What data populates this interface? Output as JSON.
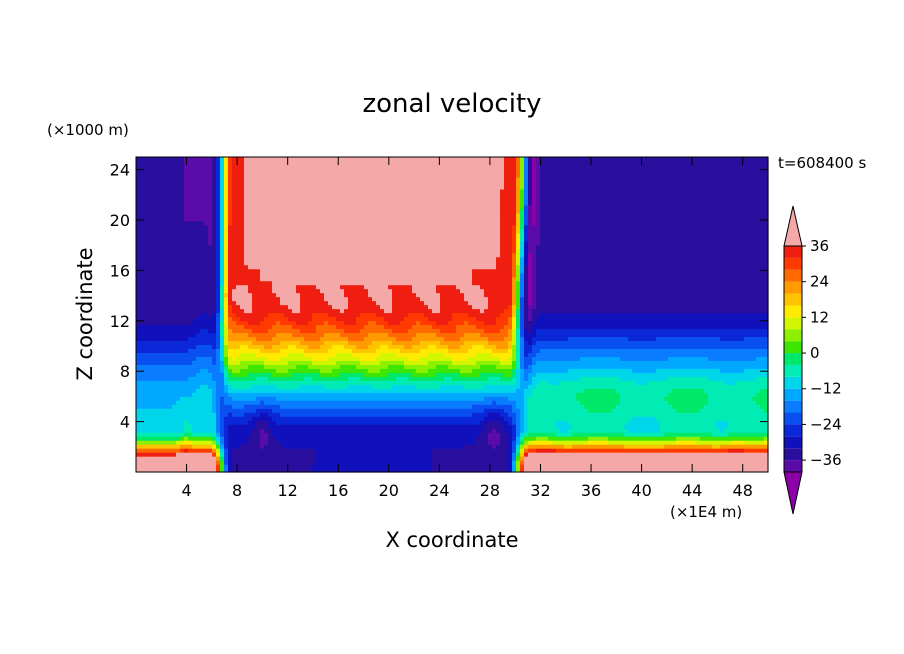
{
  "chart_data": {
    "type": "heatmap",
    "title": "zonal velocity",
    "xlabel": "X coordinate",
    "ylabel": "Z coordinate",
    "x_unit": "(×1E4 m)",
    "y_unit": "(×1000 m)",
    "time_label": "t=608400 s",
    "xlim": [
      0,
      50
    ],
    "ylim": [
      0,
      25
    ],
    "x_ticks": [
      4,
      8,
      12,
      16,
      20,
      24,
      28,
      32,
      36,
      40,
      44,
      48
    ],
    "y_ticks": [
      4,
      8,
      12,
      16,
      20,
      24
    ],
    "colorbar": {
      "levels": [
        -40,
        -36,
        -32,
        -28,
        -24,
        -20,
        -16,
        -12,
        -8,
        -4,
        0,
        4,
        8,
        12,
        16,
        20,
        24,
        28,
        32,
        36,
        40
      ],
      "colors": [
        "#8c00a8",
        "#5a0ba8",
        "#2a0f9e",
        "#1010bc",
        "#0a28d8",
        "#0a50f0",
        "#0a7cff",
        "#00a8ff",
        "#00d6ea",
        "#00ecb4",
        "#00e86a",
        "#3ce600",
        "#8cf000",
        "#d2f600",
        "#ffea00",
        "#ffc400",
        "#ff9a00",
        "#ff6a00",
        "#ff3a00",
        "#f01e10",
        "#f4a8a8"
      ],
      "tick_values": [
        -36,
        -24,
        -12,
        0,
        12,
        24,
        36
      ],
      "tick_labels": [
        "−36",
        "−24",
        "−12",
        "0",
        "12",
        "24",
        "36"
      ]
    },
    "field_description_values_m_per_s": {
      "upper_west_region": -34,
      "upper_jet_core_x18_to_25_z17_to_25": 40,
      "upper_east_region": -32,
      "lower_center_region": -36,
      "surface_west": 36,
      "surface_east": 36
    }
  }
}
